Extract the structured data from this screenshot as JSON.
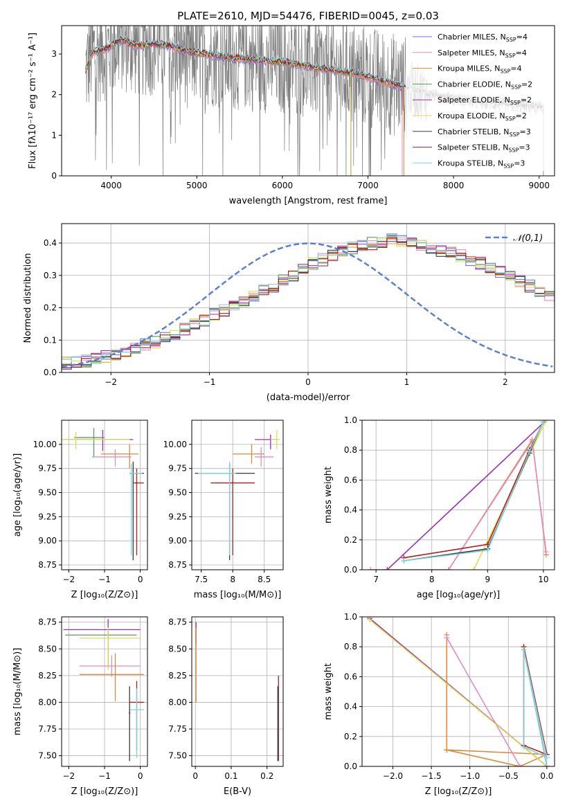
{
  "title": "PLATE=2610, MJD=54476, FIBERID=0045, z=0.03",
  "colors": {
    "data": "#7f7f7f",
    "models": [
      "#6a78d8",
      "#e58ac4",
      "#d98a3a",
      "#5b9a5b",
      "#9b2fb5",
      "#dede50",
      "#3a3a3a",
      "#b01c1c",
      "#82d3dc"
    ],
    "grid": "#b0b0b0",
    "normal": "#5b7fd1"
  },
  "chart_data": [
    {
      "id": "spectrum",
      "type": "line",
      "xlabel": "wavelength [Angstrom, rest frame]",
      "ylabel": "Flux [fλ10⁻¹⁷ erg cm⁻² s⁻¹ A⁻¹]",
      "xlim": [
        3420,
        9180
      ],
      "ylim": [
        0,
        3.7
      ],
      "xticks": [
        4000,
        5000,
        6000,
        7000,
        8000,
        9000
      ],
      "yticks": [
        0,
        1,
        2,
        3
      ],
      "grid": false,
      "legend_position": "top-right",
      "legend": [
        "Chabrier MILES, N_SSP=4",
        "Salpeter MILES, N_SSP=4",
        "Kroupa MILES, N_SSP=4",
        "Chabrier ELODIE, N_SSP=2",
        "Salpeter ELODIE, N_SSP=2",
        "Kroupa ELODIE, N_SSP=2",
        "Chabrier STELIB, N_SSP=3",
        "Salpeter STELIB, N_SSP=3",
        "Kroupa STELIB, N_SSP=3"
      ],
      "model_envelope": {
        "x": [
          3700,
          3780,
          3900,
          4000,
          4100,
          4300,
          4500,
          4700,
          4900,
          5100,
          5400,
          5700,
          6000,
          6300,
          6600,
          6900,
          7200,
          7400,
          7700,
          8000,
          8300,
          8600,
          8900,
          9100
        ],
        "y": [
          2.6,
          3.05,
          3.1,
          3.2,
          3.35,
          3.2,
          3.25,
          3.2,
          3.05,
          3.0,
          2.9,
          2.85,
          2.8,
          2.7,
          2.6,
          2.5,
          2.3,
          2.2,
          2.0,
          1.9,
          1.8,
          1.75,
          1.7,
          1.65
        ]
      },
      "model_endpoints_x": [
        7400,
        7400,
        7420,
        6800,
        6800,
        6800,
        9050,
        9050,
        9050
      ]
    },
    {
      "id": "residuals",
      "type": "line",
      "xlabel": "(data-model)/error",
      "ylabel": "Normed distribution",
      "xlim": [
        -2.5,
        2.5
      ],
      "ylim": [
        0,
        0.46
      ],
      "xticks": [
        -2,
        -1,
        0,
        1,
        2
      ],
      "yticks": [
        0.0,
        0.1,
        0.2,
        0.3,
        0.4
      ],
      "grid": true,
      "legend_position": "top-right",
      "legend": [
        "𝒩(0,1)"
      ],
      "bin_width": 0.1,
      "histogram_base": [
        0.018,
        0.022,
        0.028,
        0.03,
        0.035,
        0.042,
        0.05,
        0.058,
        0.065,
        0.075,
        0.085,
        0.095,
        0.108,
        0.12,
        0.135,
        0.148,
        0.162,
        0.178,
        0.192,
        0.208,
        0.222,
        0.238,
        0.252,
        0.268,
        0.285,
        0.3,
        0.318,
        0.335,
        0.348,
        0.362,
        0.375,
        0.385,
        0.39,
        0.398,
        0.405,
        0.41,
        0.408,
        0.4,
        0.395,
        0.385,
        0.378,
        0.37,
        0.36,
        0.348,
        0.338,
        0.325,
        0.31,
        0.298,
        0.282,
        0.268,
        0.255,
        0.238,
        0.222,
        0.208,
        0.192,
        0.178,
        0.163,
        0.148,
        0.135,
        0.12,
        0.108,
        0.096,
        0.085,
        0.075,
        0.065,
        0.058,
        0.05,
        0.043,
        0.036,
        0.03,
        0.025,
        0.022,
        0.02,
        0.018,
        0.02,
        0.028
      ]
    },
    {
      "id": "age-vs-Z",
      "type": "scatter",
      "xlabel": "Z [log₁₀(Z/Z⊙)]",
      "ylabel": "age  [log₁₀(age/yr)]",
      "xlim": [
        -2.2,
        0.2
      ],
      "ylim": [
        8.7,
        10.25
      ],
      "xticks": [
        -2,
        -1,
        0
      ],
      "yticks": [
        8.75,
        9.0,
        9.25,
        9.5,
        9.75,
        10.0
      ],
      "grid": true,
      "points": [
        {
          "x": -1.05,
          "y": 10.05,
          "xerr": [
            1.1,
            0.85
          ],
          "yerr": [
            0.12,
            0.1
          ],
          "series": 4
        },
        {
          "x": -1.3,
          "y": 10.07,
          "xerr": [
            0.55,
            0.3
          ],
          "yerr": [
            0.2,
            0.1
          ],
          "series": 3
        },
        {
          "x": -0.3,
          "y": 9.9,
          "xerr": [
            0.8,
            0.25
          ],
          "yerr": [
            0.15,
            0.1
          ],
          "series": 2
        },
        {
          "x": -0.7,
          "y": 9.87,
          "xerr": [
            0.65,
            0.45
          ],
          "yerr": [
            0.1,
            0.08
          ],
          "series": 1
        },
        {
          "x": -0.2,
          "y": 9.7,
          "xerr": [
            0.1,
            0.3
          ],
          "yerr": [
            0.9,
            0.12
          ],
          "series": 6
        },
        {
          "x": -0.1,
          "y": 9.6,
          "xerr": [
            0.1,
            0.2
          ],
          "yerr": [
            0.75,
            0.15
          ],
          "series": 7
        },
        {
          "x": -0.25,
          "y": 9.7,
          "xerr": [
            0.05,
            0.3
          ],
          "yerr": [
            0.85,
            0.1
          ],
          "series": 8
        },
        {
          "x": -1.8,
          "y": 10.05,
          "xerr": [
            0.4,
            1.5
          ],
          "yerr": [
            0.1,
            0.08
          ],
          "series": 5
        }
      ]
    },
    {
      "id": "age-vs-mass",
      "type": "scatter",
      "xlabel": "mass [log₁₀(M/M⊙)]",
      "ylabel": "",
      "xlim": [
        7.35,
        8.8
      ],
      "ylim": [
        8.7,
        10.25
      ],
      "xticks": [
        7.5,
        8.0,
        8.5
      ],
      "yticks": [
        8.75,
        9.0,
        9.25,
        9.5,
        9.75,
        10.0
      ],
      "grid": true,
      "points": [
        {
          "x": 8.6,
          "y": 10.05,
          "xerr": [
            0.25,
            0.1
          ],
          "yerr": [
            0.1,
            0.05
          ],
          "series": 4
        },
        {
          "x": 8.3,
          "y": 9.9,
          "xerr": [
            0.3,
            0.2
          ],
          "yerr": [
            0.1,
            0.1
          ],
          "series": 2
        },
        {
          "x": 8.45,
          "y": 9.87,
          "xerr": [
            0.1,
            0.2
          ],
          "yerr": [
            0.1,
            0.1
          ],
          "series": 1
        },
        {
          "x": 7.95,
          "y": 9.7,
          "xerr": [
            0.55,
            0.4
          ],
          "yerr": [
            0.9,
            0.1
          ],
          "series": 6
        },
        {
          "x": 8.0,
          "y": 9.6,
          "xerr": [
            0.35,
            0.35
          ],
          "yerr": [
            0.75,
            0.15
          ],
          "series": 7
        },
        {
          "x": 7.95,
          "y": 9.7,
          "xerr": [
            0.5,
            0.1
          ],
          "yerr": [
            0.85,
            0.12
          ],
          "series": 8
        },
        {
          "x": 8.7,
          "y": 10.05,
          "xerr": [
            0.1,
            0.05
          ],
          "yerr": [
            0.1,
            0.1
          ],
          "series": 5
        }
      ]
    },
    {
      "id": "massweight-vs-age",
      "type": "line",
      "xlabel": "age  [log₁₀(age/yr)]",
      "ylabel": "mass weight",
      "xlim": [
        6.75,
        10.2
      ],
      "ylim": [
        0,
        1.0
      ],
      "xticks": [
        7,
        8,
        9,
        10
      ],
      "yticks": [
        0.0,
        0.2,
        0.4,
        0.6,
        0.8,
        1.0
      ],
      "grid": true,
      "series": [
        {
          "x": [
            6.9,
            8.3,
            9.8,
            10.05
          ],
          "y": [
            0.0,
            0.0,
            0.87,
            0.1
          ],
          "series": 2
        },
        {
          "x": [
            6.9,
            8.3,
            9.8,
            10.05
          ],
          "y": [
            0.0,
            0.0,
            0.86,
            0.12
          ],
          "series": 1
        },
        {
          "x": [
            7.2,
            10.05
          ],
          "y": [
            0.0,
            1.0
          ],
          "series": 4
        },
        {
          "x": [
            8.75,
            10.05
          ],
          "y": [
            0.0,
            1.0
          ],
          "series": 5
        },
        {
          "x": [
            7.5,
            9.0,
            9.75,
            10.0
          ],
          "y": [
            0.08,
            0.17,
            0.8,
            0.99
          ],
          "series": 7
        },
        {
          "x": [
            7.5,
            9.0,
            9.75,
            10.0
          ],
          "y": [
            0.06,
            0.14,
            0.78,
            0.99
          ],
          "series": 6
        },
        {
          "x": [
            7.5,
            9.0,
            9.75,
            10.0
          ],
          "y": [
            0.06,
            0.13,
            0.79,
            0.99
          ],
          "series": 8
        }
      ]
    },
    {
      "id": "mass-vs-Z",
      "type": "scatter",
      "xlabel": "Z [log₁₀(Z/Z⊙)]",
      "ylabel": "mass [log₁₀(M/M⊙)]",
      "xlim": [
        -2.2,
        0.2
      ],
      "ylim": [
        7.4,
        8.8
      ],
      "xticks": [
        -2,
        -1,
        0
      ],
      "yticks": [
        7.5,
        7.75,
        8.0,
        8.25,
        8.5,
        8.75
      ],
      "grid": true,
      "points": [
        {
          "x": -0.9,
          "y": 8.68,
          "xerr": [
            1.25,
            0.9
          ],
          "yerr": [
            0.35,
            0.1
          ],
          "series": 4
        },
        {
          "x": -0.9,
          "y": 8.63,
          "xerr": [
            1.2,
            0.8
          ],
          "yerr": [
            0.3,
            0.08
          ],
          "series": 3
        },
        {
          "x": -0.9,
          "y": 8.6,
          "xerr": [
            0.8,
            0.9
          ],
          "yerr": [
            0.3,
            0.1
          ],
          "series": 5
        },
        {
          "x": -0.8,
          "y": 8.34,
          "xerr": [
            0.9,
            0.8
          ],
          "yerr": [
            0.1,
            0.1
          ],
          "series": 1
        },
        {
          "x": -0.7,
          "y": 8.26,
          "xerr": [
            1.0,
            0.8
          ],
          "yerr": [
            0.25,
            0.2
          ],
          "series": 2
        },
        {
          "x": -0.1,
          "y": 8.0,
          "xerr": [
            0.2,
            0.2
          ],
          "yerr": [
            0.45,
            0.2
          ],
          "series": 7
        },
        {
          "x": -0.1,
          "y": 7.93,
          "xerr": [
            0.2,
            0.2
          ],
          "yerr": [
            0.45,
            0.2
          ],
          "series": 8
        },
        {
          "x": -0.3,
          "y": 7.9,
          "xerr": [
            0.02,
            0.02
          ],
          "yerr": [
            0.45,
            0.25
          ],
          "series": 6
        }
      ]
    },
    {
      "id": "ebv-mass",
      "type": "scatter",
      "xlabel": "E(B-V)",
      "ylabel": "",
      "xlim": [
        -0.01,
        0.245
      ],
      "ylim": [
        7.4,
        8.8
      ],
      "xticks": [
        0.0,
        0.1,
        0.2
      ],
      "yticks": [
        7.5,
        7.75,
        8.0,
        8.25,
        8.5,
        8.75
      ],
      "grid": true,
      "points": [
        {
          "x": 0.002,
          "y": 8.65,
          "xerr": [
            0,
            0
          ],
          "yerr": [
            0.1,
            0.1
          ],
          "series": 4
        },
        {
          "x": 0.002,
          "y": 8.3,
          "xerr": [
            0,
            0
          ],
          "yerr": [
            0.3,
            0.4
          ],
          "series": 2
        },
        {
          "x": 0.232,
          "y": 8.0,
          "xerr": [
            0,
            0
          ],
          "yerr": [
            0.55,
            0.25
          ],
          "series": 7
        },
        {
          "x": 0.23,
          "y": 7.9,
          "xerr": [
            0,
            0
          ],
          "yerr": [
            0.45,
            0.25
          ],
          "series": 6
        }
      ]
    },
    {
      "id": "massweight-vs-Z",
      "type": "line",
      "xlabel": "Z [log₁₀(Z/Z⊙)]",
      "ylabel": "mass weight",
      "xlim": [
        -2.4,
        0.1
      ],
      "ylim": [
        0,
        1.0
      ],
      "xticks": [
        -2.0,
        -1.5,
        -1.0,
        -0.5,
        0.0
      ],
      "yticks": [
        0.0,
        0.2,
        0.4,
        0.6,
        0.8,
        1.0
      ],
      "grid": true,
      "series": [
        {
          "x": [
            -1.3,
            -1.3,
            -0.35,
            0.0,
            -1.3
          ],
          "y": [
            0.88,
            0.11,
            0.0,
            0.08,
            0.11
          ],
          "series": 2
        },
        {
          "x": [
            -1.3,
            -0.35
          ],
          "y": [
            0.86,
            0.0
          ],
          "series": 1
        },
        {
          "x": [
            -2.3,
            0.0
          ],
          "y": [
            0.99,
            0.0
          ],
          "series": 4
        },
        {
          "x": [
            -2.3,
            0.0
          ],
          "y": [
            0.98,
            0.0
          ],
          "series": 5
        },
        {
          "x": [
            -0.3,
            0.0,
            -0.3,
            -0.3,
            0.0
          ],
          "y": [
            0.8,
            0.08,
            0.14,
            0.8,
            0.0
          ],
          "series": 7
        },
        {
          "x": [
            -0.3,
            0.0,
            -0.3,
            -0.3,
            0.0
          ],
          "y": [
            0.78,
            0.06,
            0.13,
            0.78,
            0.0
          ],
          "series": 8
        }
      ]
    }
  ]
}
